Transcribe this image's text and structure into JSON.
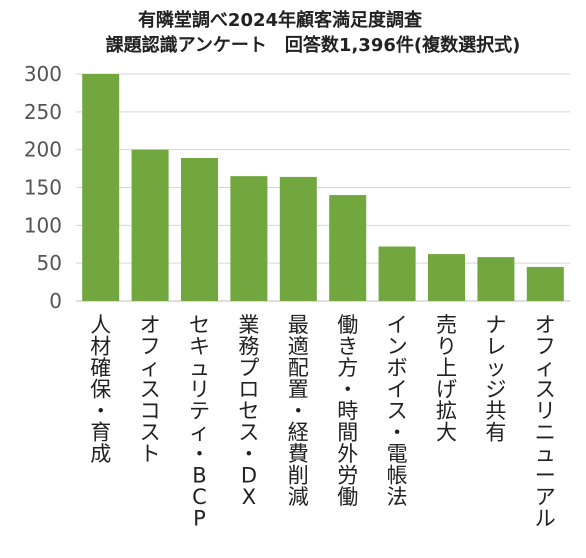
{
  "chart_data": {
    "type": "bar",
    "title": "有隣堂調べ2024年顧客満足度調査",
    "subtitle": "課題認識アンケート　回答数1,396件(複数選択式)",
    "categories": [
      "人材確保・育成",
      "オフィスコスト",
      "セキュリティ・BCP",
      "業務プロセス・DX",
      "最適配置・経費削減",
      "働き方・時間外労働",
      "インボイス・電帳法",
      "売り上げ拡大",
      "ナレッジ共有",
      "オフィスリニューアル"
    ],
    "values": [
      300,
      200,
      189,
      165,
      164,
      140,
      72,
      62,
      58,
      45
    ],
    "yticks": [
      0,
      50,
      100,
      150,
      200,
      250,
      300
    ],
    "ylim": [
      0,
      300
    ],
    "bar_color": "#72a63f",
    "grid": true
  }
}
